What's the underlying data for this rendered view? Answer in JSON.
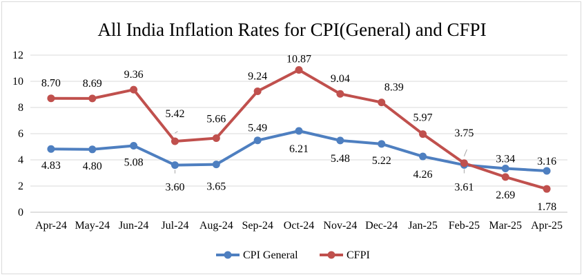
{
  "chart_data": {
    "type": "line",
    "title": "All India Inflation Rates for CPI(General) and CFPI",
    "xlabel": "",
    "ylabel": "",
    "ylim": [
      0,
      12
    ],
    "yticks": [
      0,
      2,
      4,
      6,
      8,
      10,
      12
    ],
    "categories": [
      "Apr-24",
      "May-24",
      "Jun-24",
      "Jul-24",
      "Aug-24",
      "Sep-24",
      "Oct-24",
      "Nov-24",
      "Dec-24",
      "Jan-25",
      "Feb-25",
      "Mar-25",
      "Apr-25"
    ],
    "series": [
      {
        "name": "CPI General",
        "color": "#4e7fc0",
        "values": [
          4.83,
          4.8,
          5.08,
          3.6,
          3.65,
          5.49,
          6.21,
          5.48,
          5.22,
          4.26,
          3.61,
          3.34,
          3.16
        ],
        "labels": [
          "4.83",
          "4.80",
          "5.08",
          "3.60",
          "3.65",
          "5.49",
          "6.21",
          "5.48",
          "5.22",
          "4.26",
          "3.61",
          "3.34",
          "3.16"
        ]
      },
      {
        "name": "CFPI",
        "color": "#c0504d",
        "values": [
          8.7,
          8.69,
          9.36,
          5.42,
          5.66,
          9.24,
          10.87,
          9.04,
          8.39,
          5.97,
          3.75,
          2.69,
          1.78
        ],
        "labels": [
          "8.70",
          "8.69",
          "9.36",
          "5.42",
          "5.66",
          "9.24",
          "10.87",
          "9.04",
          "8.39",
          "5.97",
          "3.75",
          "2.69",
          "1.78"
        ]
      }
    ],
    "grid": true,
    "legend_position": "bottom"
  }
}
